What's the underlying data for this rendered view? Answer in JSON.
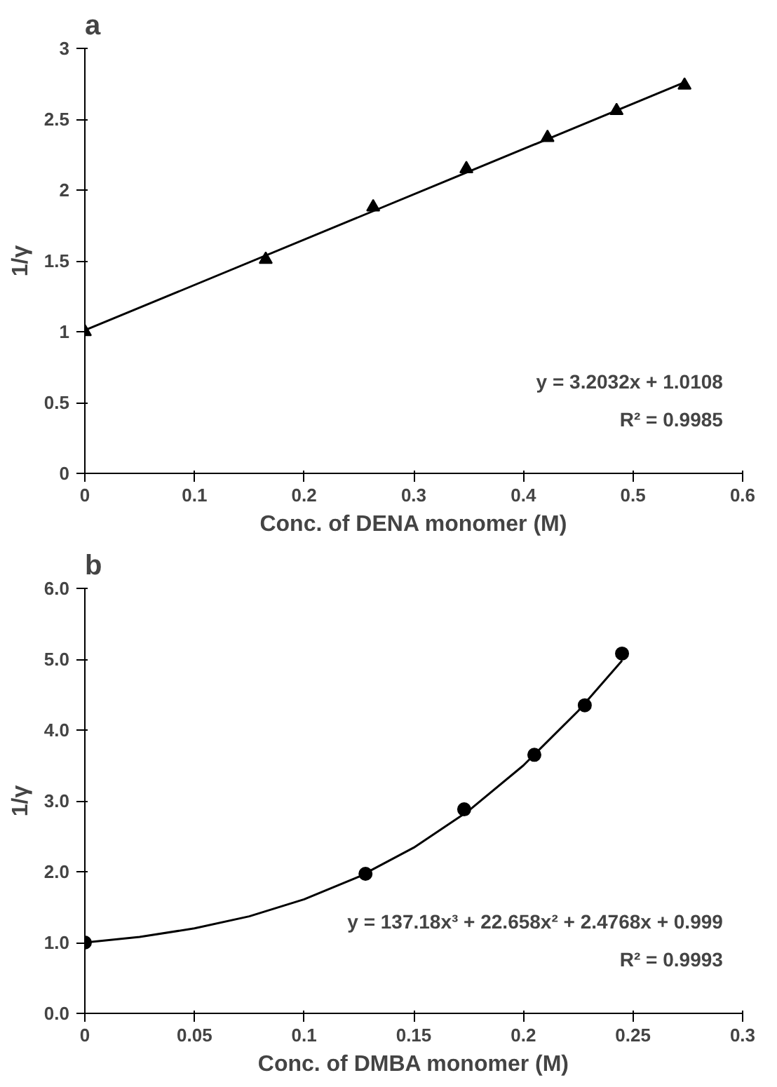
{
  "chart_data": [
    {
      "type": "scatter",
      "title": "a",
      "xlabel": "Conc. of DENA monomer (M)",
      "ylabel": "1/γ",
      "grid": false,
      "xlim": [
        0,
        0.6
      ],
      "ylim": [
        0,
        3
      ],
      "xticks": [
        0,
        0.1,
        0.2,
        0.3,
        0.4,
        0.5,
        0.6
      ],
      "yticks": [
        0,
        0.5,
        1,
        1.5,
        2,
        2.5,
        3
      ],
      "annotations": [
        "y = 3.2032x + 1.0108",
        "R² = 0.9985"
      ],
      "series": [
        {
          "marker": "triangle",
          "color": "#000000",
          "x": [
            0,
            0.165,
            0.263,
            0.348,
            0.422,
            0.485,
            0.547
          ],
          "values": [
            1.0,
            1.51,
            1.88,
            2.15,
            2.37,
            2.56,
            2.74
          ]
        },
        {
          "type": "line",
          "color": "#000000",
          "x": [
            0,
            0.547
          ],
          "values": [
            1.01,
            2.76
          ]
        }
      ]
    },
    {
      "type": "scatter",
      "title": "b",
      "xlabel": "Conc. of DMBA monomer (M)",
      "ylabel": "1/γ",
      "grid": false,
      "xlim": [
        0,
        0.3
      ],
      "ylim": [
        0,
        6
      ],
      "xticks": [
        0,
        0.05,
        0.1,
        0.15,
        0.2,
        0.25,
        0.3
      ],
      "yticks": [
        {
          "value": 0,
          "label": "0.0"
        },
        {
          "value": 1,
          "label": "1.0"
        },
        {
          "value": 2,
          "label": "2.0"
        },
        {
          "value": 3,
          "label": "3.0"
        },
        {
          "value": 4,
          "label": "4.0"
        },
        {
          "value": 5,
          "label": "5.0"
        },
        {
          "value": 6,
          "label": "6.0"
        }
      ],
      "annotations": [
        "y = 137.18x³ + 22.658x² + 2.4768x + 0.999",
        "R² = 0.9993"
      ],
      "series": [
        {
          "marker": "circle",
          "color": "#000000",
          "x": [
            0,
            0.128,
            0.173,
            0.205,
            0.228,
            0.245
          ],
          "values": [
            1.0,
            1.97,
            2.88,
            3.65,
            4.35,
            5.08
          ]
        },
        {
          "type": "line",
          "color": "#000000",
          "x": [
            0,
            0.025,
            0.05,
            0.075,
            0.1,
            0.125,
            0.15,
            0.175,
            0.2,
            0.225,
            0.245
          ],
          "values": [
            1.0,
            1.08,
            1.2,
            1.37,
            1.61,
            1.93,
            2.34,
            2.86,
            3.5,
            4.27,
            4.98
          ]
        }
      ]
    }
  ]
}
